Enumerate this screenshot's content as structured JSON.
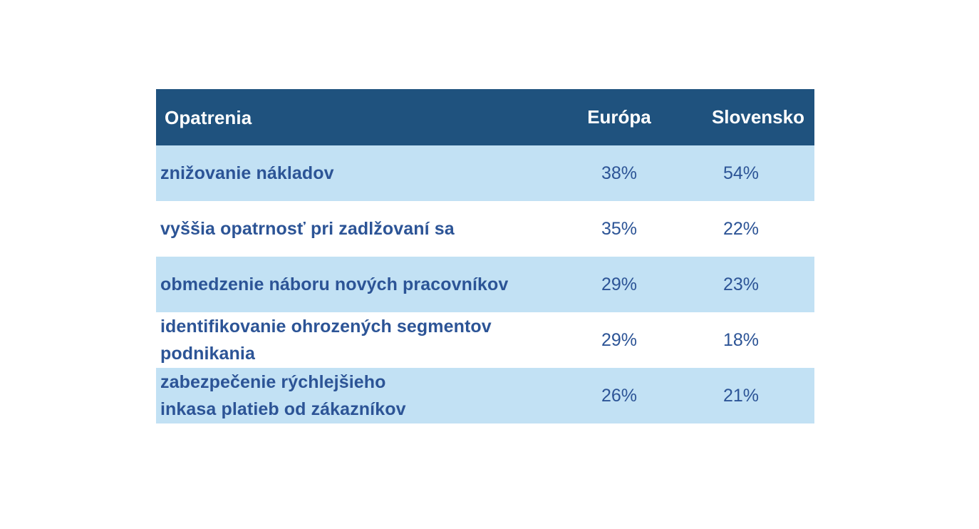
{
  "chart_data": {
    "type": "table",
    "columns": [
      "Opatrenia",
      "Európa",
      "Slovensko"
    ],
    "rows": [
      {
        "label_lines": [
          "znižovanie nákladov"
        ],
        "europa": "38%",
        "slovensko": "54%"
      },
      {
        "label_lines": [
          "vyššia opatrnosť pri zadlžovaní sa"
        ],
        "europa": "35%",
        "slovensko": "22%"
      },
      {
        "label_lines": [
          "obmedzenie náboru nových pracovníkov"
        ],
        "europa": "29%",
        "slovensko": "23%"
      },
      {
        "label_lines": [
          "identifikovanie ohrozených segmentov",
          "podnikania"
        ],
        "europa": "29%",
        "slovensko": "18%"
      },
      {
        "label_lines": [
          "zabezpečenie rýchlejšieho",
          "inkasa platieb od zákazníkov"
        ],
        "europa": "26%",
        "slovensko": "21%"
      }
    ]
  },
  "colors": {
    "header_bg": "#1f527e",
    "shaded_row_bg": "#c2e1f4",
    "text": "#2c5496"
  }
}
